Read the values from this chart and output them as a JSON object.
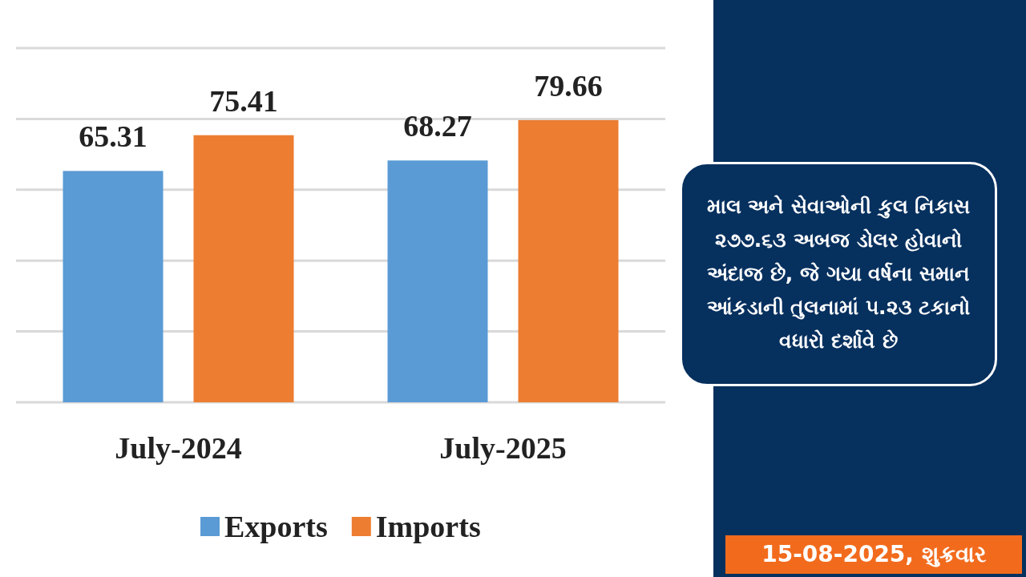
{
  "chart_data": {
    "type": "bar",
    "categories": [
      "July-2024",
      "July-2025"
    ],
    "series": [
      {
        "name": "Exports",
        "color": "#5b9bd5",
        "values": [
          65.31,
          68.27
        ]
      },
      {
        "name": "Imports",
        "color": "#ed7d31",
        "values": [
          75.41,
          79.66
        ]
      }
    ],
    "data_labels": true,
    "ylim": [
      0,
      100
    ],
    "yticks": [
      {
        "value": 0,
        "label": null
      },
      {
        "value": 20,
        "label": null
      },
      {
        "value": 40,
        "label": null
      },
      {
        "value": 60,
        "label": null
      },
      {
        "value": 80,
        "label": null
      },
      {
        "value": 100,
        "label": null
      }
    ],
    "tick_labels": "x",
    "grid": "y",
    "legend": "bottom",
    "annotations": [
      "માલ અને સેવાઓની કુલ નિકાસ ૨૭૭.૬૩ અબજ ડોલર હોવાનો અંદાજ છે, જે ગયા વર્ષના સમાન આંકડાની તુલનામાં ૫.૨૩ ટકાનો વધારો દર્શાવે છે",
      "15-08-2025, શુક્રવાર"
    ]
  }
}
